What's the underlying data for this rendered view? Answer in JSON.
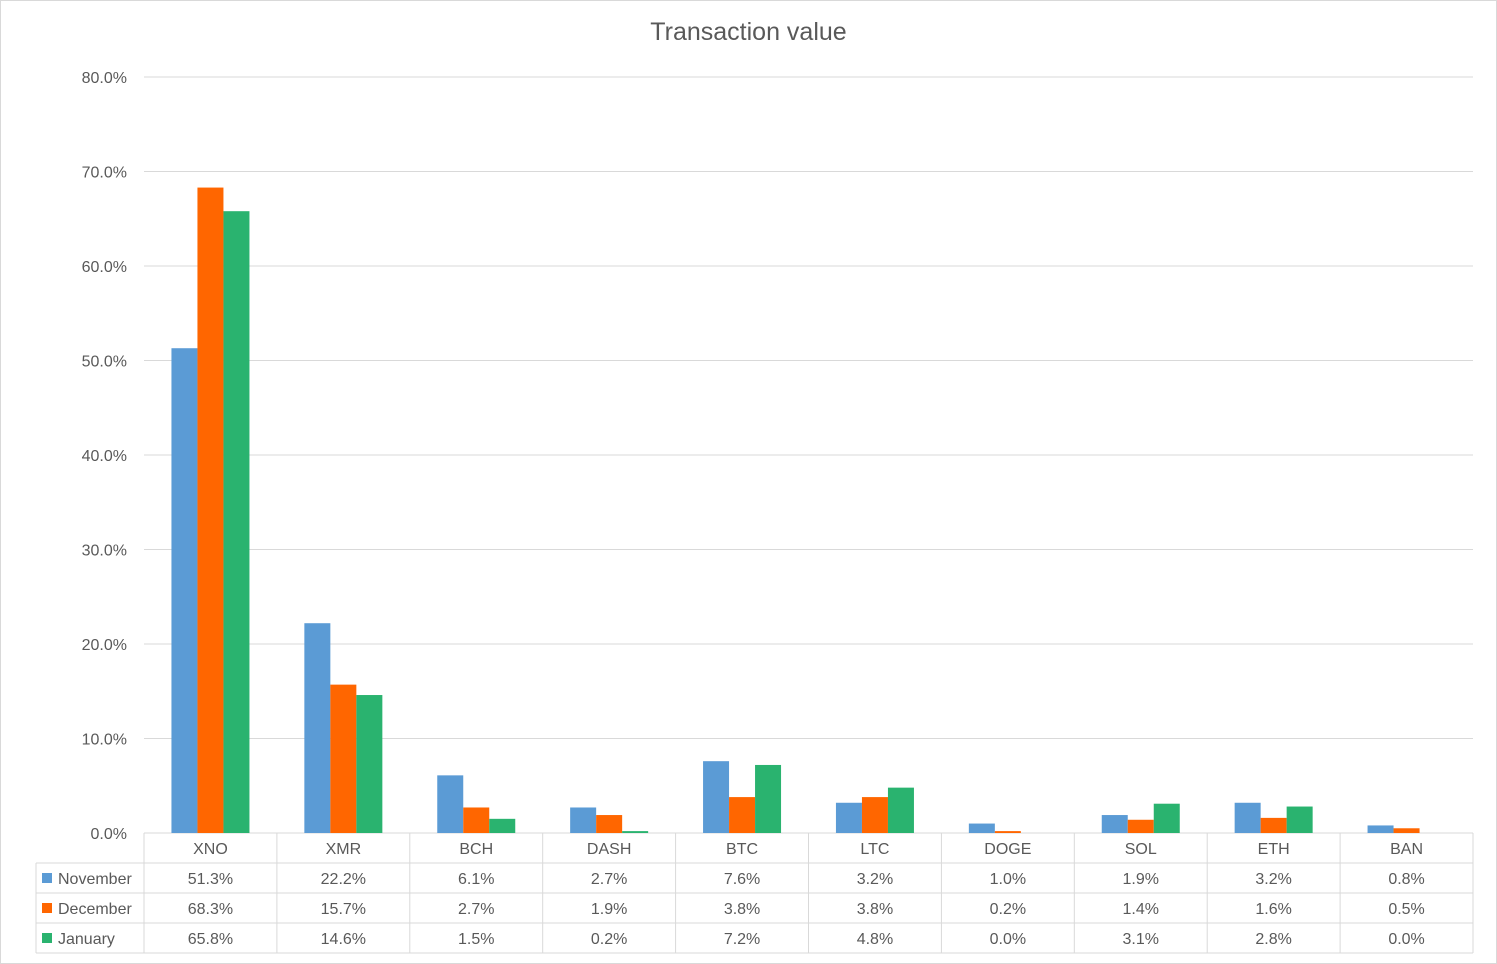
{
  "chart_data": {
    "type": "bar",
    "title": "Transaction value",
    "xlabel": "",
    "ylabel": "",
    "ylim": [
      0,
      80
    ],
    "yticks": [
      "0.0%",
      "10.0%",
      "20.0%",
      "30.0%",
      "40.0%",
      "50.0%",
      "60.0%",
      "70.0%",
      "80.0%"
    ],
    "grid": true,
    "legend": "data-table-left",
    "categories": [
      "XNO",
      "XMR",
      "BCH",
      "DASH",
      "BTC",
      "LTC",
      "DOGE",
      "SOL",
      "ETH",
      "BAN"
    ],
    "series": [
      {
        "name": "November",
        "color": "#5b9bd5",
        "values": [
          51.3,
          22.2,
          6.1,
          2.7,
          7.6,
          3.2,
          1.0,
          1.9,
          3.2,
          0.8
        ],
        "labels": [
          "51.3%",
          "22.2%",
          "6.1%",
          "2.7%",
          "7.6%",
          "3.2%",
          "1.0%",
          "1.9%",
          "3.2%",
          "0.8%"
        ]
      },
      {
        "name": "December",
        "color": "#ff6600",
        "values": [
          68.3,
          15.7,
          2.7,
          1.9,
          3.8,
          3.8,
          0.2,
          1.4,
          1.6,
          0.5
        ],
        "labels": [
          "68.3%",
          "15.7%",
          "2.7%",
          "1.9%",
          "3.8%",
          "3.8%",
          "0.2%",
          "1.4%",
          "1.6%",
          "0.5%"
        ]
      },
      {
        "name": "January",
        "color": "#2ab36f",
        "values": [
          65.8,
          14.6,
          1.5,
          0.2,
          7.2,
          4.8,
          0.0,
          3.1,
          2.8,
          0.0
        ],
        "labels": [
          "65.8%",
          "14.6%",
          "1.5%",
          "0.2%",
          "7.2%",
          "4.8%",
          "0.0%",
          "3.1%",
          "2.8%",
          "0.0%"
        ]
      }
    ]
  }
}
